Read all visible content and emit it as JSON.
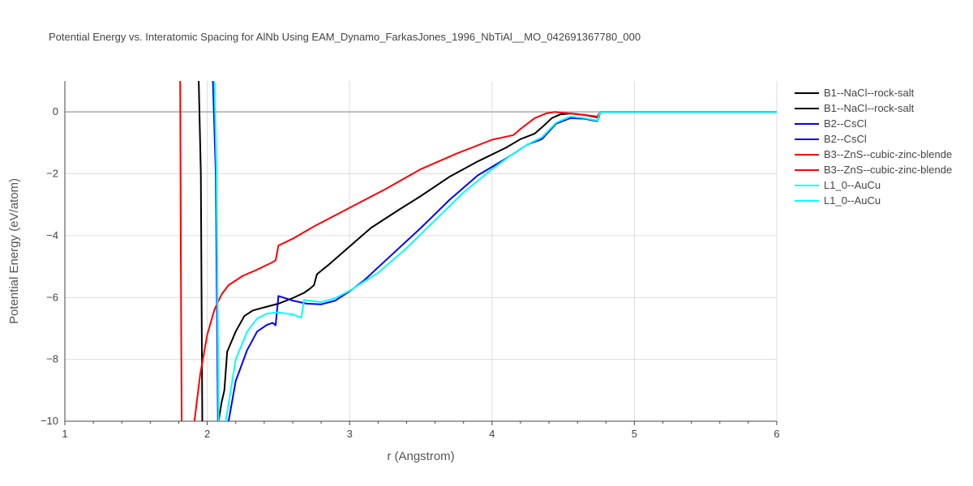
{
  "chart_data": {
    "type": "line",
    "title": "Potential Energy vs. Interatomic Spacing for AlNb Using EAM_Dynamo_FarkasJones_1996_NbTiAl__MO_042691367780_000",
    "xlabel": "r (Angstrom)",
    "ylabel": "Potential Energy (eV/atom)",
    "xlim": [
      1,
      6
    ],
    "ylim": [
      -10,
      1
    ],
    "xticks": [
      1,
      2,
      3,
      4,
      5,
      6
    ],
    "yticks": [
      -10,
      -8,
      -6,
      -4,
      -2,
      0
    ],
    "xtick_labels": [
      "1",
      "2",
      "3",
      "4",
      "5",
      "6"
    ],
    "ytick_labels": [
      "−10",
      "−8",
      "−6",
      "−4",
      "−2",
      "0"
    ],
    "grid": true,
    "legend_position": "top-right",
    "series": [
      {
        "name": "B1--NaCl--rock-salt",
        "color": "#000000",
        "points": [
          [
            1.94,
            1.0
          ],
          [
            1.955,
            -2.0
          ],
          [
            1.965,
            -10.0
          ]
        ]
      },
      {
        "name": "B1--NaCl--rock-salt",
        "color": "#000000",
        "points": [
          [
            2.08,
            -10.0
          ],
          [
            2.1,
            -9.4
          ],
          [
            2.12,
            -9.0
          ],
          [
            2.14,
            -7.75
          ],
          [
            2.2,
            -7.1
          ],
          [
            2.26,
            -6.6
          ],
          [
            2.32,
            -6.42
          ],
          [
            2.4,
            -6.32
          ],
          [
            2.5,
            -6.2
          ],
          [
            2.6,
            -6.02
          ],
          [
            2.68,
            -5.85
          ],
          [
            2.72,
            -5.72
          ],
          [
            2.75,
            -5.6
          ],
          [
            2.77,
            -5.25
          ],
          [
            2.85,
            -4.95
          ],
          [
            3.0,
            -4.35
          ],
          [
            3.15,
            -3.75
          ],
          [
            3.35,
            -3.15
          ],
          [
            3.5,
            -2.72
          ],
          [
            3.7,
            -2.1
          ],
          [
            3.9,
            -1.6
          ],
          [
            4.1,
            -1.15
          ],
          [
            4.2,
            -0.88
          ],
          [
            4.3,
            -0.7
          ],
          [
            4.35,
            -0.5
          ],
          [
            4.42,
            -0.2
          ],
          [
            4.48,
            -0.08
          ],
          [
            4.55,
            -0.05
          ],
          [
            4.65,
            -0.1
          ],
          [
            4.75,
            -0.18
          ],
          [
            4.76,
            0.0
          ],
          [
            6.0,
            0.0
          ]
        ]
      },
      {
        "name": "B2--CsCl",
        "color": "#0000ff",
        "points": [
          [
            2.04,
            1.0
          ],
          [
            2.06,
            -2.0
          ],
          [
            2.075,
            -10.0
          ]
        ]
      },
      {
        "name": "B2--CsCl",
        "color": "#0000ff",
        "points": [
          [
            2.15,
            -10.0
          ],
          [
            2.2,
            -8.7
          ],
          [
            2.28,
            -7.7
          ],
          [
            2.35,
            -7.1
          ],
          [
            2.42,
            -6.88
          ],
          [
            2.46,
            -6.82
          ],
          [
            2.48,
            -6.9
          ],
          [
            2.5,
            -5.95
          ],
          [
            2.6,
            -6.1
          ],
          [
            2.7,
            -6.2
          ],
          [
            2.8,
            -6.22
          ],
          [
            2.9,
            -6.1
          ],
          [
            3.0,
            -5.8
          ],
          [
            3.1,
            -5.45
          ],
          [
            3.3,
            -4.6
          ],
          [
            3.5,
            -3.75
          ],
          [
            3.7,
            -2.85
          ],
          [
            3.9,
            -2.05
          ],
          [
            4.1,
            -1.5
          ],
          [
            4.25,
            -1.05
          ],
          [
            4.35,
            -0.88
          ],
          [
            4.45,
            -0.38
          ],
          [
            4.55,
            -0.2
          ],
          [
            4.65,
            -0.22
          ],
          [
            4.74,
            -0.3
          ],
          [
            4.76,
            0.0
          ],
          [
            6.0,
            0.0
          ]
        ]
      },
      {
        "name": "B3--ZnS--cubic-zinc-blende",
        "color": "#ff0000",
        "points": [
          [
            1.81,
            1.0
          ],
          [
            1.815,
            -5.0
          ],
          [
            1.82,
            -10.0
          ]
        ]
      },
      {
        "name": "B3--ZnS--cubic-zinc-blende",
        "color": "#ff0000",
        "points": [
          [
            1.91,
            -10.0
          ],
          [
            1.95,
            -8.5
          ],
          [
            2.0,
            -7.2
          ],
          [
            2.05,
            -6.4
          ],
          [
            2.1,
            -5.9
          ],
          [
            2.15,
            -5.6
          ],
          [
            2.25,
            -5.3
          ],
          [
            2.35,
            -5.1
          ],
          [
            2.45,
            -4.88
          ],
          [
            2.48,
            -4.8
          ],
          [
            2.5,
            -4.32
          ],
          [
            2.6,
            -4.1
          ],
          [
            2.75,
            -3.7
          ],
          [
            3.0,
            -3.1
          ],
          [
            3.25,
            -2.5
          ],
          [
            3.5,
            -1.85
          ],
          [
            3.75,
            -1.35
          ],
          [
            4.0,
            -0.9
          ],
          [
            4.15,
            -0.75
          ],
          [
            4.2,
            -0.55
          ],
          [
            4.3,
            -0.2
          ],
          [
            4.38,
            -0.05
          ],
          [
            4.44,
            0.0
          ],
          [
            4.6,
            -0.07
          ],
          [
            4.74,
            -0.15
          ],
          [
            4.76,
            0.0
          ],
          [
            6.0,
            0.0
          ]
        ]
      },
      {
        "name": "L1_0--AuCu",
        "color": "#00ffff",
        "points": [
          [
            2.05,
            1.0
          ],
          [
            2.065,
            -2.0
          ],
          [
            2.08,
            -10.0
          ]
        ]
      },
      {
        "name": "L1_0--AuCu",
        "color": "#00ffff",
        "points": [
          [
            2.13,
            -10.0
          ],
          [
            2.2,
            -8.0
          ],
          [
            2.28,
            -7.1
          ],
          [
            2.35,
            -6.68
          ],
          [
            2.42,
            -6.52
          ],
          [
            2.5,
            -6.48
          ],
          [
            2.6,
            -6.55
          ],
          [
            2.66,
            -6.65
          ],
          [
            2.68,
            -6.08
          ],
          [
            2.8,
            -6.15
          ],
          [
            2.9,
            -6.02
          ],
          [
            3.0,
            -5.78
          ],
          [
            3.2,
            -5.2
          ],
          [
            3.4,
            -4.4
          ],
          [
            3.6,
            -3.5
          ],
          [
            3.8,
            -2.6
          ],
          [
            4.0,
            -1.85
          ],
          [
            4.15,
            -1.35
          ],
          [
            4.25,
            -1.05
          ],
          [
            4.35,
            -0.82
          ],
          [
            4.45,
            -0.35
          ],
          [
            4.55,
            -0.15
          ],
          [
            4.65,
            -0.2
          ],
          [
            4.74,
            -0.28
          ],
          [
            4.76,
            0.0
          ],
          [
            6.0,
            0.0
          ]
        ]
      }
    ]
  }
}
